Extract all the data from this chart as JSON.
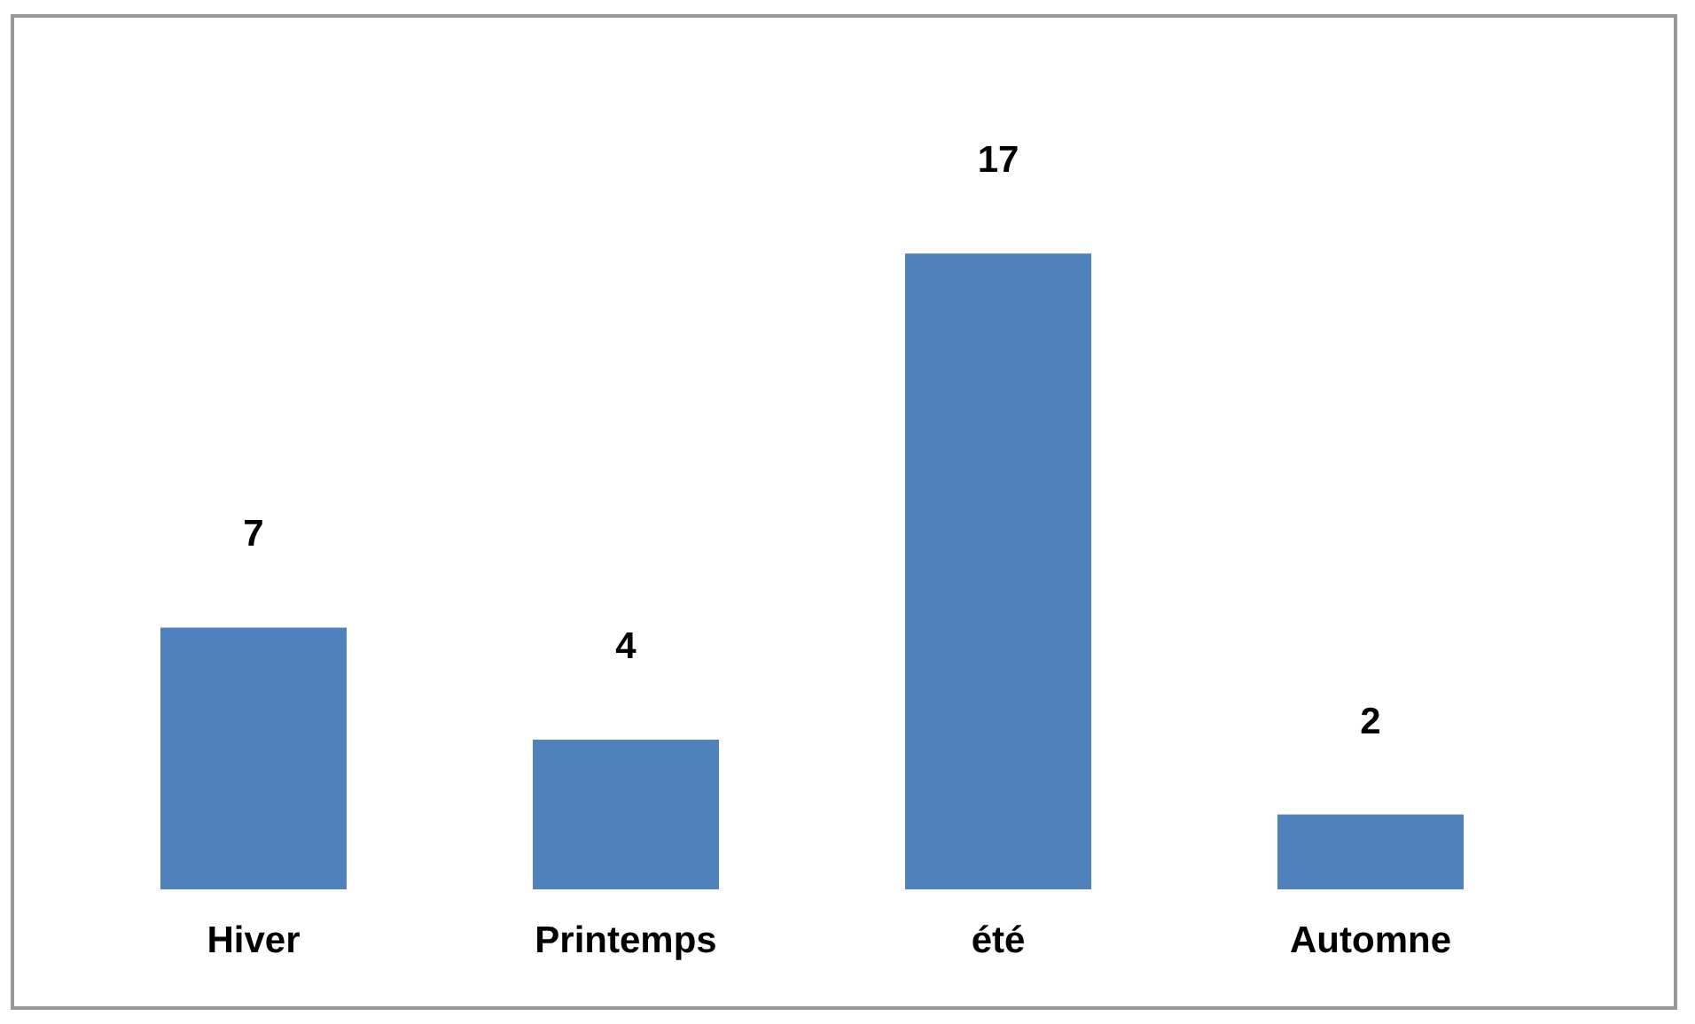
{
  "chart_data": {
    "type": "bar",
    "categories": [
      "Hiver",
      "Printemps",
      "été",
      "Automne"
    ],
    "values": [
      7,
      4,
      17,
      2
    ],
    "color": "#4f81bd",
    "data_labels": true
  }
}
